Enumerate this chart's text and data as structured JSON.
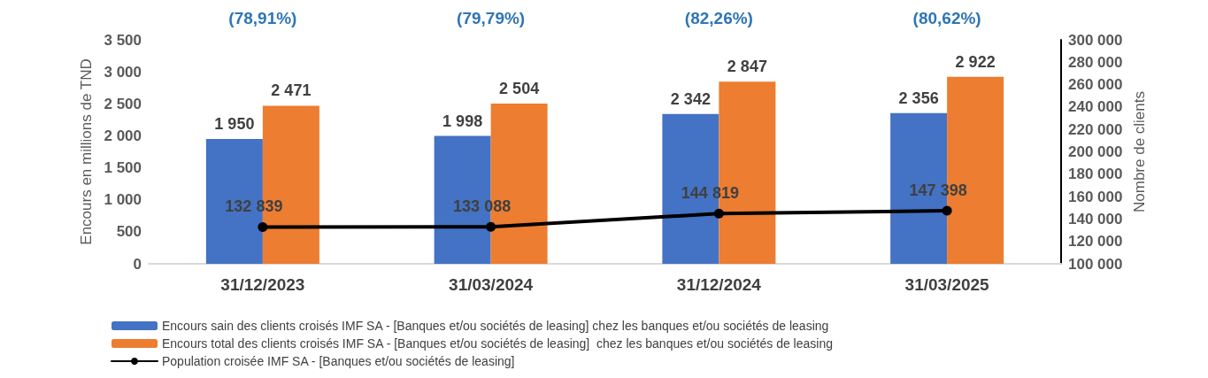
{
  "chart_data": {
    "type": "bar",
    "ylabel": "Encours en millions de TND",
    "y2label": "Nombre de clients",
    "categories": [
      "31/12/2023",
      "31/03/2024",
      "31/12/2024",
      "31/03/2025"
    ],
    "series": [
      {
        "name": "Encours sain des clients croisés IMF SA - [Banques et/ou sociétés de leasing] chez les banques et/ou sociétés de leasing",
        "color": "#4472c4",
        "values": [
          1950,
          1998,
          2342,
          2356
        ],
        "value_labels": [
          "1 950",
          "1 998",
          "2 342",
          "2 356"
        ]
      },
      {
        "name": "Encours total des clients croisés IMF SA - [Banques et/ou sociétés de leasing]  chez les banques et/ou sociétés de leasing",
        "color": "#ed7d31",
        "values": [
          2471,
          2504,
          2847,
          2922
        ],
        "value_labels": [
          "2 471",
          "2 504",
          "2 847",
          "2 922"
        ]
      },
      {
        "name": "Population croisée IMF SA - [Banques et/ou sociétés de leasing]",
        "type": "line",
        "axis": "y2",
        "color": "#000000",
        "marker": "circle",
        "line_style": "solid",
        "values": [
          132839,
          133088,
          144819,
          147398
        ],
        "value_labels": [
          "132 839",
          "133 088",
          "144 819",
          "147 398"
        ]
      }
    ],
    "ylim": [
      0,
      3500
    ],
    "yticks": [
      0,
      500,
      {
        "value": 1000,
        "label": "1 000"
      },
      {
        "value": 1500,
        "label": "1 500"
      },
      {
        "value": 2000,
        "label": "2 000"
      },
      {
        "value": 2500,
        "label": "2 500"
      },
      {
        "value": 3000,
        "label": "3 000"
      },
      {
        "value": 3500,
        "label": "3 500"
      }
    ],
    "y2lim": [
      100000,
      300000
    ],
    "y2ticks": [
      {
        "value": 100000,
        "label": "100 000"
      },
      {
        "value": 120000,
        "label": "120 000"
      },
      {
        "value": 140000,
        "label": "140 000"
      },
      {
        "value": 160000,
        "label": "160 000"
      },
      {
        "value": 180000,
        "label": "180 000"
      },
      {
        "value": 200000,
        "label": "200 000"
      },
      {
        "value": 220000,
        "label": "220 000"
      },
      {
        "value": 240000,
        "label": "240 000"
      },
      {
        "value": 260000,
        "label": "260 000"
      },
      {
        "value": 280000,
        "label": "280 000"
      },
      {
        "value": 300000,
        "label": "300 000"
      }
    ],
    "annotations": [
      "(78,91%)",
      "(79,79%)",
      "(82,26%)",
      "(80,62%)"
    ],
    "grid": false,
    "legend": "bottom"
  }
}
